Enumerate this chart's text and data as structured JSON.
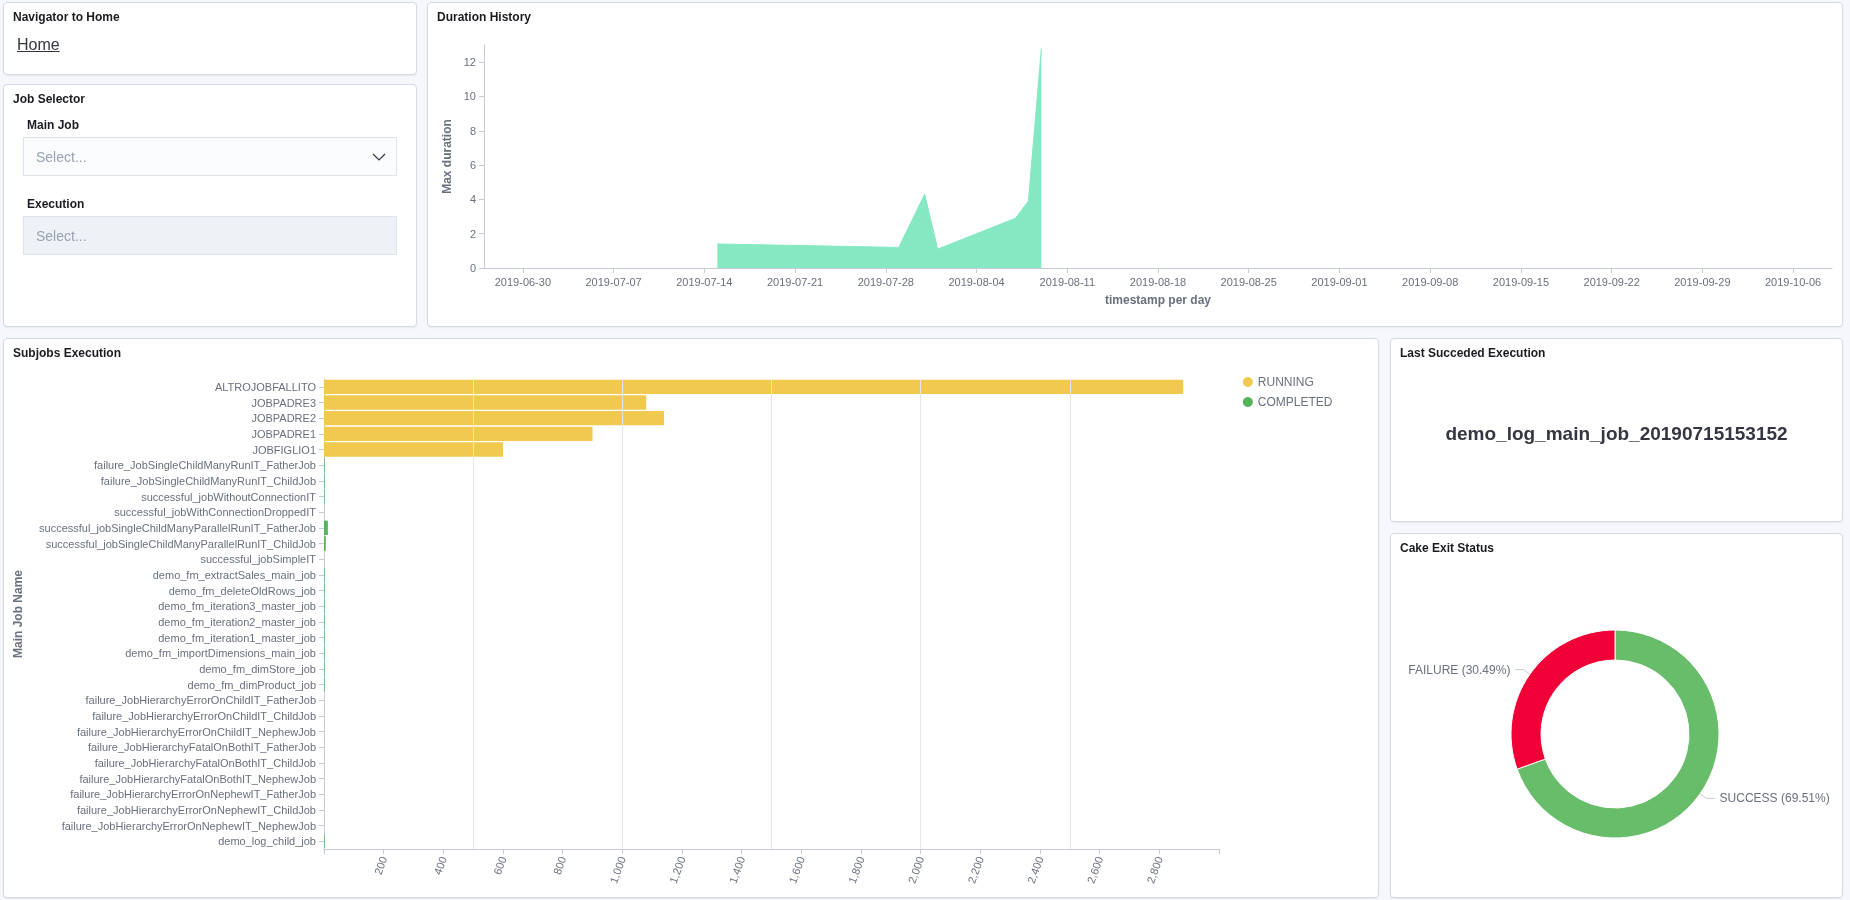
{
  "chart_data": [
    {
      "type": "other",
      "title": "Navigator to Home",
      "annotations": [
        "Home"
      ]
    },
    {
      "type": "other",
      "title": "Job Selector",
      "annotations": [
        "Main Job",
        "Select...",
        "Execution",
        "Select..."
      ]
    },
    {
      "type": "area",
      "title": "Duration History",
      "xlabel": "timestamp per day",
      "ylabel": "Max duration",
      "color": "#85e8c2",
      "x": [
        "2019-07-15",
        "2019-07-29",
        "2019-07-31",
        "2019-08-01",
        "2019-08-07",
        "2019-08-08",
        "2019-08-09"
      ],
      "values": [
        1.4,
        1.2,
        4.3,
        1.1,
        2.9,
        3.9,
        12.8
      ],
      "xlim": [
        "2019-06-27",
        "2019-10-09"
      ],
      "xticks": [
        "2019-06-30",
        "2019-07-07",
        "2019-07-14",
        "2019-07-21",
        "2019-07-28",
        "2019-08-04",
        "2019-08-11",
        "2019-08-18",
        "2019-08-25",
        "2019-09-01",
        "2019-09-08",
        "2019-09-15",
        "2019-09-22",
        "2019-09-29",
        "2019-10-06"
      ],
      "ylim": [
        0,
        13
      ],
      "yticks": [
        0,
        2,
        4,
        6,
        8,
        10,
        12
      ]
    },
    {
      "type": "bar",
      "orientation": "horizontal",
      "title": "Subjobs Execution",
      "ylabel": "Main Job Name",
      "legend": "top right",
      "categories": [
        "ALTROJOBFALLITO",
        "JOBPADRE3",
        "JOBPADRE2",
        "JOBPADRE1",
        "JOBFIGLIO1",
        "failure_JobSingleChildManyRunIT_FatherJob",
        "failure_JobSingleChildManyRunIT_ChildJob",
        "successful_jobWithoutConnectionIT",
        "successful_jobWithConnectionDroppedIT",
        "successful_jobSingleChildManyParallelRunIT_FatherJob",
        "successful_jobSingleChildManyParallelRunIT_ChildJob",
        "successful_jobSimpleIT",
        "demo_fm_extractSales_main_job",
        "demo_fm_deleteOldRows_job",
        "demo_fm_iteration3_master_job",
        "demo_fm_iteration2_master_job",
        "demo_fm_iteration1_master_job",
        "demo_fm_importDimensions_main_job",
        "demo_fm_dimStore_job",
        "demo_fm_dimProduct_job",
        "failure_JobHierarchyErrorOnChildIT_FatherJob",
        "failure_JobHierarchyErrorOnChildIT_ChildJob",
        "failure_JobHierarchyErrorOnChildIT_NephewJob",
        "failure_JobHierarchyFatalOnBothIT_FatherJob",
        "failure_JobHierarchyFatalOnBothIT_ChildJob",
        "failure_JobHierarchyFatalOnBothIT_NephewJob",
        "failure_JobHierarchyErrorOnNephewIT_FatherJob",
        "failure_JobHierarchyErrorOnNephewIT_ChildJob",
        "failure_JobHierarchyErrorOnNephewIT_NephewJob",
        "demo_log_child_job"
      ],
      "series": [
        {
          "name": "RUNNING",
          "color": "#f1c94f",
          "values": [
            2880,
            1080,
            1140,
            900,
            600,
            null,
            null,
            null,
            null,
            null,
            null,
            null,
            null,
            null,
            null,
            null,
            null,
            null,
            null,
            null,
            null,
            null,
            null,
            null,
            null,
            null,
            null,
            null,
            null,
            null
          ]
        },
        {
          "name": "COMPLETED",
          "color": "#54b45a",
          "values": [
            null,
            null,
            null,
            null,
            null,
            2,
            2,
            2,
            null,
            13,
            6,
            null,
            2,
            2,
            2,
            2,
            2,
            2,
            2,
            2,
            null,
            null,
            null,
            null,
            null,
            null,
            null,
            null,
            null,
            2
          ]
        }
      ],
      "xlim": [
        0,
        3000
      ],
      "xticks": [
        {
          "value": 0,
          "label": null
        },
        200,
        400,
        600,
        800,
        {
          "value": 1000,
          "label": "1,000"
        },
        {
          "value": 1200,
          "label": "1,200"
        },
        {
          "value": 1400,
          "label": "1,400"
        },
        {
          "value": 1600,
          "label": "1,600"
        },
        {
          "value": 1800,
          "label": "1,800"
        },
        {
          "value": 2000,
          "label": "2,000"
        },
        {
          "value": 2200,
          "label": "2,200"
        },
        {
          "value": 2400,
          "label": "2,400"
        },
        {
          "value": 2600,
          "label": "2,600"
        },
        {
          "value": 2800,
          "label": "2,800"
        },
        {
          "value": 3000,
          "label": null
        }
      ],
      "ref_lines": [
        {
          "axis": "x",
          "value": 500,
          "color": "#e3e6ea"
        },
        {
          "axis": "x",
          "value": 1000,
          "color": "#e3e6ea"
        },
        {
          "axis": "x",
          "value": 1500,
          "color": "#e3e6ea"
        },
        {
          "axis": "x",
          "value": 2000,
          "color": "#e3e6ea"
        },
        {
          "axis": "x",
          "value": 2500,
          "color": "#e3e6ea"
        }
      ]
    },
    {
      "type": "other",
      "title": "Last Succeded Execution",
      "annotations": [
        "demo_log_main_job_20190715153152"
      ]
    },
    {
      "type": "donut",
      "title": "Cake Exit Status",
      "categories": [
        "SUCCESS",
        "FAILURE"
      ],
      "values": [
        69.51,
        30.49
      ],
      "colors": [
        "#68bd6a",
        "#f00036"
      ],
      "value_labels": [
        "(69.51%)",
        "(30.49%)"
      ]
    }
  ]
}
